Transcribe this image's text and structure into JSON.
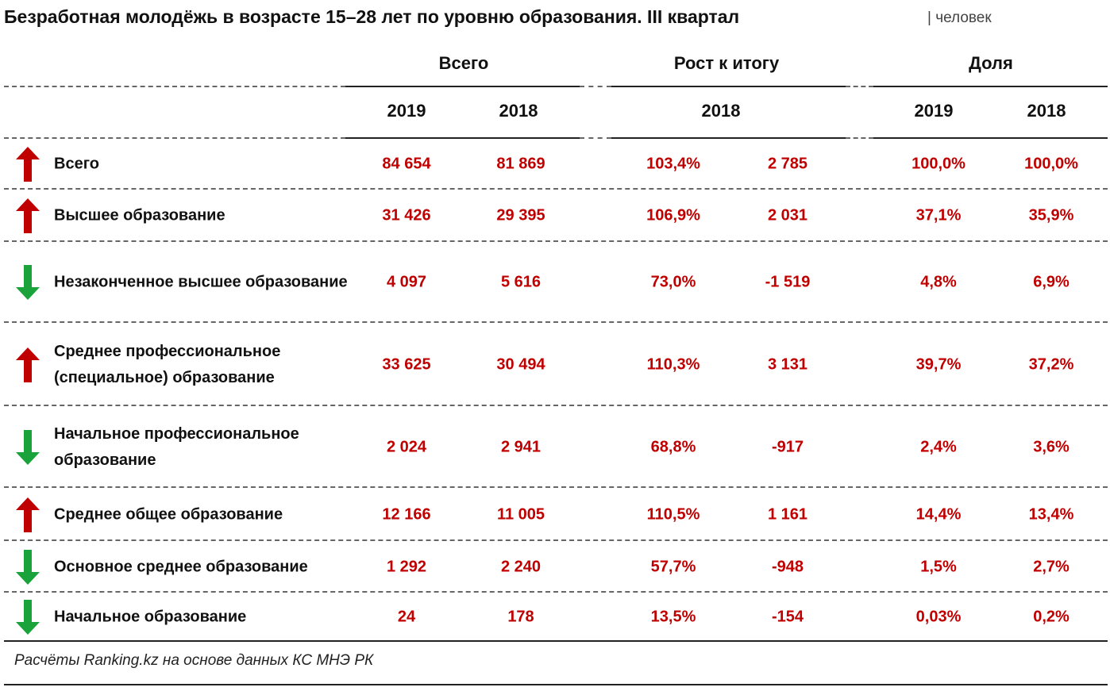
{
  "header": {
    "title": "Безработная молодёжь в возрасте 15–28 лет по уровню образования. III квартал",
    "unit": "| человек"
  },
  "table": {
    "groups": [
      "Всего",
      "Рост к итогу",
      "Доля"
    ],
    "subheaders": [
      "2019",
      "2018",
      "2018",
      "2019",
      "2018"
    ],
    "rows": [
      {
        "trend": "up",
        "label": "Всего",
        "cells": [
          "84 654",
          "81 869",
          "103,4%",
          "2 785",
          "100,0%",
          "100,0%"
        ]
      },
      {
        "trend": "up",
        "label": "Высшее образование",
        "cells": [
          "31 426",
          "29 395",
          "106,9%",
          "2 031",
          "37,1%",
          "35,9%"
        ]
      },
      {
        "trend": "down",
        "label": "Незаконченное высшее образование",
        "cells": [
          "4 097",
          "5 616",
          "73,0%",
          "-1 519",
          "4,8%",
          "6,9%"
        ]
      },
      {
        "trend": "up",
        "label": "Среднее профессиональное (специальное) образование",
        "cells": [
          "33 625",
          "30 494",
          "110,3%",
          "3 131",
          "39,7%",
          "37,2%"
        ]
      },
      {
        "trend": "down",
        "label": "Начальное профессиональное образование",
        "cells": [
          "2 024",
          "2 941",
          "68,8%",
          "-917",
          "2,4%",
          "3,6%"
        ]
      },
      {
        "trend": "up",
        "label": "Среднее общее образование",
        "cells": [
          "12 166",
          "11 005",
          "110,5%",
          "1 161",
          "14,4%",
          "13,4%"
        ]
      },
      {
        "trend": "down",
        "label": "Основное среднее образование",
        "cells": [
          "1 292",
          "2 240",
          "57,7%",
          "-948",
          "1,5%",
          "2,7%"
        ]
      },
      {
        "trend": "down",
        "label": "Начальное образование",
        "cells": [
          "24",
          "178",
          "13,5%",
          "-154",
          "0,03%",
          "0,2%"
        ]
      }
    ]
  },
  "footer": {
    "source": "Расчёты Ranking.kz на основе данных КС МНЭ РК"
  }
}
